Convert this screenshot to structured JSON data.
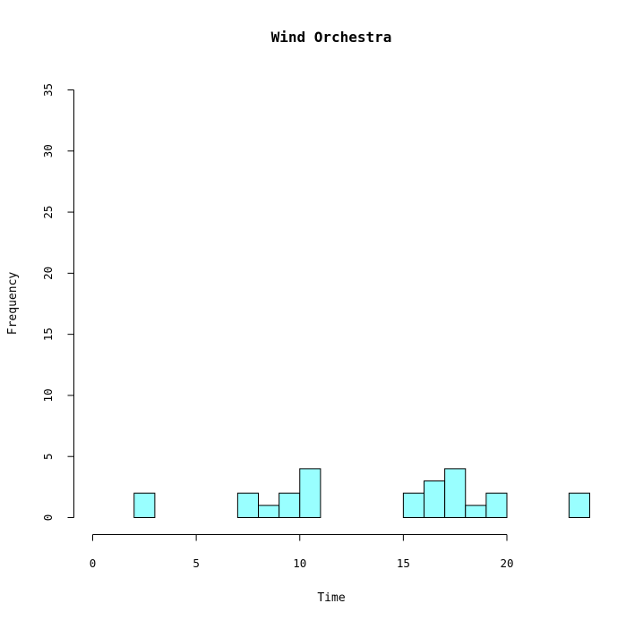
{
  "chart_data": {
    "type": "bar",
    "title": "Wind Orchestra",
    "xlabel": "Time",
    "ylabel": "Frequency",
    "xlim": [
      0,
      24
    ],
    "ylim": [
      0,
      35
    ],
    "x_ticks": [
      "0",
      "5",
      "10",
      "15",
      "20"
    ],
    "y_ticks": [
      "0",
      "5",
      "10",
      "15",
      "20",
      "25",
      "30",
      "35"
    ],
    "bar_color": "#99FFFF",
    "bar_edge_color": "#000000",
    "grid": false,
    "bins": [
      {
        "x0": 2,
        "x1": 3,
        "count": 2
      },
      {
        "x0": 7,
        "x1": 8,
        "count": 2
      },
      {
        "x0": 8,
        "x1": 9,
        "count": 1
      },
      {
        "x0": 9,
        "x1": 10,
        "count": 2
      },
      {
        "x0": 10,
        "x1": 11,
        "count": 4
      },
      {
        "x0": 15,
        "x1": 16,
        "count": 2
      },
      {
        "x0": 16,
        "x1": 17,
        "count": 3
      },
      {
        "x0": 17,
        "x1": 18,
        "count": 4
      },
      {
        "x0": 18,
        "x1": 19,
        "count": 1
      },
      {
        "x0": 19,
        "x1": 20,
        "count": 2
      },
      {
        "x0": 23,
        "x1": 24,
        "count": 2
      }
    ]
  }
}
